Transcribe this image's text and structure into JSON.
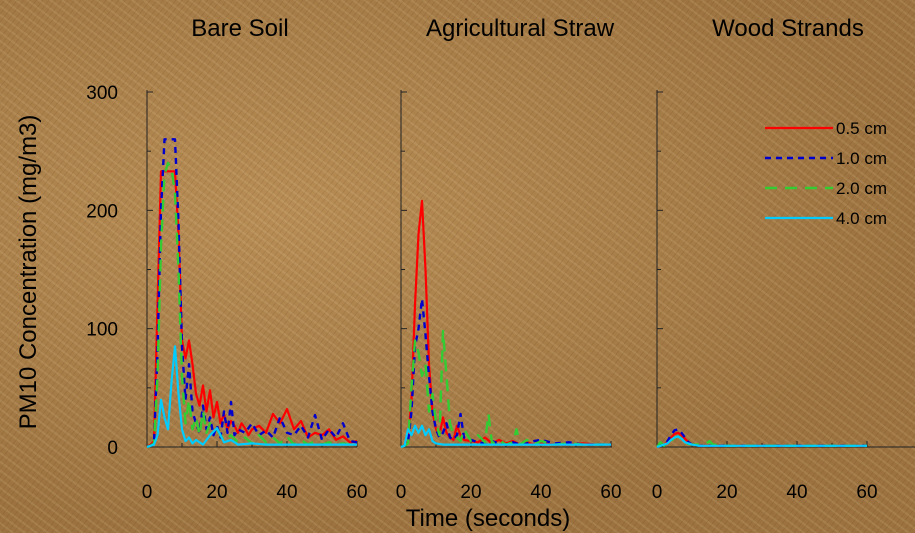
{
  "chart_data": {
    "type": "line",
    "ylabel": "PM10 Concentration (mg/m3)",
    "xlabel": "Time (seconds)",
    "ylim": [
      0,
      300
    ],
    "xlim": [
      0,
      60
    ],
    "yticks": [
      "0",
      "100",
      "200",
      "300"
    ],
    "xticks": [
      "0",
      "20",
      "40",
      "60"
    ],
    "grid": false,
    "legend_position": "top-right of third panel",
    "colors": {
      "0.5 cm": "#ff0000",
      "1.0 cm": "#0000cc",
      "2.0 cm": "#33cc33",
      "4.0 cm": "#00ccff"
    },
    "legend": [
      {
        "label": "0.5 cm",
        "color": "#ff0000",
        "dash": "solid"
      },
      {
        "label": "1.0 cm",
        "color": "#0000cc",
        "dash": "short-dash"
      },
      {
        "label": "2.0 cm",
        "color": "#33cc33",
        "dash": "long-dash"
      },
      {
        "label": "4.0 cm",
        "color": "#00ccff",
        "dash": "solid"
      }
    ],
    "panels": [
      {
        "title": "Bare Soil",
        "series": [
          {
            "name": "0.5 cm",
            "x": [
              0,
              1,
              2,
              3,
              4,
              5,
              6,
              7,
              8,
              9,
              10,
              11,
              12,
              13,
              14,
              15,
              16,
              17,
              18,
              19,
              20,
              21,
              22,
              23,
              24,
              25,
              26,
              27,
              28,
              29,
              30,
              32,
              34,
              36,
              38,
              40,
              42,
              44,
              46,
              48,
              50,
              52,
              54,
              56,
              58,
              60
            ],
            "y": [
              0,
              2,
              5,
              120,
              233,
              233,
              233,
              233,
              233,
              180,
              90,
              75,
              90,
              70,
              45,
              35,
              52,
              30,
              48,
              25,
              38,
              20,
              28,
              15,
              22,
              18,
              12,
              20,
              16,
              10,
              15,
              18,
              12,
              28,
              20,
              32,
              15,
              22,
              8,
              12,
              10,
              15,
              6,
              9,
              4,
              5
            ]
          },
          {
            "name": "1.0 cm",
            "x": [
              0,
              1,
              2,
              3,
              4,
              5,
              6,
              7,
              8,
              9,
              10,
              11,
              12,
              13,
              14,
              15,
              16,
              17,
              18,
              19,
              20,
              21,
              22,
              23,
              24,
              25,
              26,
              28,
              30,
              32,
              34,
              36,
              38,
              40,
              42,
              44,
              46,
              48,
              50,
              52,
              54,
              56,
              58,
              60
            ],
            "y": [
              0,
              1,
              4,
              80,
              200,
              260,
              260,
              260,
              260,
              190,
              85,
              40,
              70,
              30,
              20,
              12,
              35,
              15,
              25,
              10,
              18,
              8,
              30,
              12,
              38,
              10,
              15,
              12,
              20,
              10,
              14,
              8,
              25,
              12,
              10,
              18,
              8,
              27,
              6,
              15,
              8,
              20,
              5,
              4
            ]
          },
          {
            "name": "2.0 cm",
            "x": [
              0,
              1,
              2,
              3,
              4,
              5,
              6,
              7,
              8,
              9,
              10,
              11,
              12,
              13,
              14,
              15,
              16,
              17,
              18,
              20,
              22,
              24,
              26,
              28,
              30,
              32,
              34,
              36,
              38,
              40,
              42,
              44,
              46,
              48,
              50,
              52,
              54,
              56,
              58,
              60
            ],
            "y": [
              0,
              1,
              3,
              60,
              170,
              230,
              240,
              235,
              215,
              150,
              60,
              20,
              40,
              15,
              25,
              10,
              30,
              12,
              20,
              15,
              5,
              10,
              4,
              8,
              3,
              10,
              4,
              8,
              3,
              9,
              2,
              6,
              2,
              5,
              2,
              4,
              2,
              3,
              2,
              3
            ]
          },
          {
            "name": "4.0 cm",
            "x": [
              0,
              1,
              2,
              3,
              4,
              5,
              6,
              7,
              8,
              9,
              10,
              11,
              12,
              13,
              14,
              16,
              18,
              20,
              22,
              24,
              26,
              30,
              34,
              38,
              42,
              46,
              50,
              54,
              58,
              60
            ],
            "y": [
              0,
              1,
              2,
              10,
              40,
              25,
              15,
              55,
              85,
              45,
              15,
              5,
              8,
              3,
              6,
              2,
              10,
              16,
              4,
              6,
              2,
              3,
              2,
              2,
              2,
              2,
              2,
              2,
              2,
              2
            ]
          }
        ]
      },
      {
        "title": "Agricultural Straw",
        "series": [
          {
            "name": "0.5 cm",
            "x": [
              0,
              1,
              2,
              3,
              4,
              5,
              6,
              7,
              8,
              9,
              10,
              11,
              12,
              13,
              14,
              15,
              16,
              17,
              18,
              20,
              22,
              24,
              26,
              28,
              30,
              32,
              34,
              36,
              38,
              40,
              44,
              48,
              52,
              56,
              60
            ],
            "y": [
              0,
              1,
              5,
              40,
              120,
              180,
              208,
              150,
              70,
              30,
              15,
              10,
              25,
              12,
              8,
              6,
              18,
              10,
              6,
              5,
              4,
              8,
              3,
              6,
              3,
              5,
              2,
              4,
              2,
              3,
              2,
              2,
              3,
              2,
              2
            ]
          },
          {
            "name": "1.0 cm",
            "x": [
              0,
              1,
              2,
              3,
              4,
              5,
              6,
              7,
              8,
              9,
              10,
              11,
              12,
              13,
              14,
              15,
              16,
              17,
              18,
              20,
              22,
              24,
              26,
              28,
              30,
              32,
              34,
              36,
              38,
              40,
              44,
              48,
              52,
              56,
              60
            ],
            "y": [
              0,
              1,
              4,
              30,
              85,
              100,
              125,
              95,
              60,
              30,
              15,
              8,
              12,
              20,
              8,
              6,
              10,
              28,
              8,
              6,
              4,
              3,
              5,
              3,
              2,
              4,
              2,
              3,
              5,
              6,
              3,
              4,
              2,
              2,
              2
            ]
          },
          {
            "name": "2.0 cm",
            "x": [
              0,
              1,
              2,
              3,
              4,
              5,
              6,
              7,
              8,
              9,
              10,
              11,
              12,
              13,
              14,
              15,
              16,
              17,
              18,
              20,
              22,
              24,
              25,
              26,
              28,
              30,
              32,
              33,
              34,
              36,
              38,
              40,
              44,
              48,
              52,
              56,
              60
            ],
            "y": [
              0,
              1,
              3,
              50,
              90,
              80,
              60,
              70,
              30,
              45,
              20,
              10,
              98,
              60,
              20,
              10,
              8,
              5,
              15,
              5,
              10,
              4,
              28,
              3,
              6,
              2,
              4,
              15,
              2,
              6,
              2,
              5,
              2,
              3,
              2,
              2,
              2
            ]
          },
          {
            "name": "4.0 cm",
            "x": [
              0,
              1,
              2,
              3,
              4,
              5,
              6,
              7,
              8,
              9,
              10,
              12,
              14,
              16,
              18,
              20,
              25,
              30,
              40,
              50,
              60
            ],
            "y": [
              0,
              1,
              15,
              10,
              18,
              12,
              18,
              10,
              15,
              5,
              3,
              2,
              2,
              2,
              2,
              2,
              2,
              2,
              2,
              2,
              2
            ]
          }
        ]
      },
      {
        "title": "Wood Strands",
        "series": [
          {
            "name": "0.5 cm",
            "x": [
              0,
              1,
              2,
              3,
              4,
              5,
              6,
              7,
              8,
              9,
              10,
              12,
              15,
              20,
              30,
              40,
              50,
              60
            ],
            "y": [
              0,
              1,
              2,
              4,
              8,
              11,
              12,
              10,
              7,
              4,
              2,
              1,
              1,
              1,
              1,
              1,
              1,
              1
            ]
          },
          {
            "name": "1.0 cm",
            "x": [
              0,
              1,
              2,
              3,
              4,
              5,
              6,
              7,
              8,
              9,
              10,
              12,
              15,
              20,
              30,
              40,
              50,
              60
            ],
            "y": [
              0,
              1,
              2,
              5,
              10,
              14,
              15,
              12,
              8,
              4,
              2,
              1,
              1,
              1,
              1,
              1,
              1,
              1
            ]
          },
          {
            "name": "2.0 cm",
            "x": [
              0,
              1,
              2,
              3,
              4,
              5,
              6,
              7,
              8,
              10,
              12,
              14,
              15,
              16,
              20,
              30,
              40,
              50,
              60
            ],
            "y": [
              0,
              4,
              1,
              3,
              5,
              8,
              9,
              7,
              3,
              2,
              2,
              3,
              5,
              2,
              1,
              1,
              1,
              1,
              1
            ]
          },
          {
            "name": "4.0 cm",
            "x": [
              0,
              1,
              2,
              3,
              4,
              5,
              6,
              7,
              8,
              10,
              12,
              20,
              30,
              40,
              50,
              60
            ],
            "y": [
              0,
              1,
              2,
              3,
              6,
              8,
              9,
              7,
              4,
              2,
              1,
              1,
              1,
              1,
              1,
              1
            ]
          }
        ]
      }
    ]
  }
}
